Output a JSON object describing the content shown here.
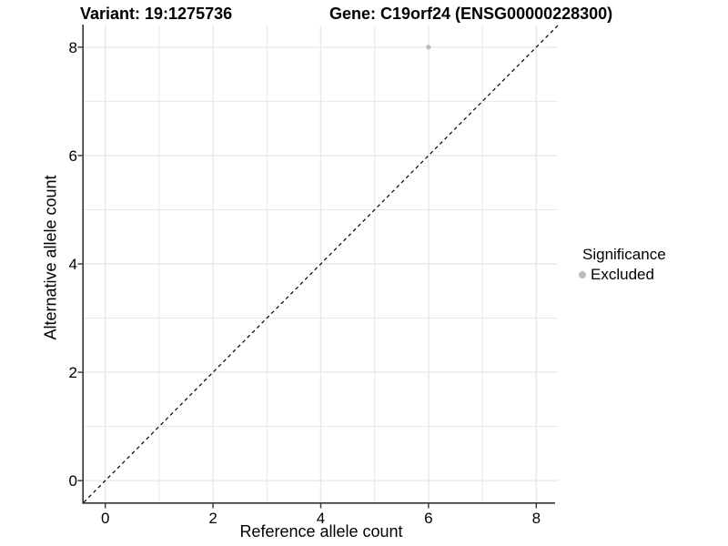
{
  "colors": {
    "background": "#FFFFFF",
    "grid": "#E8E8E8",
    "axis": "#333333",
    "text": "#000000",
    "point": "#BDBDBD"
  },
  "chart_data": {
    "type": "scatter",
    "titles": [
      "Variant: 19:1275736",
      "Gene: C19orf24 (ENSG00000228300)"
    ],
    "xlabel": "Reference allele count",
    "ylabel": "Alternative allele count",
    "xlim": [
      -0.4,
      8.4
    ],
    "ylim": [
      -0.4,
      8.4
    ],
    "xticks": [
      0,
      2,
      4,
      6,
      8
    ],
    "yticks": [
      0,
      2,
      4,
      6,
      8
    ],
    "grid": true,
    "grid_values": [
      0,
      1,
      2,
      3,
      4,
      5,
      6,
      7,
      8
    ],
    "series": [
      {
        "name": "Excluded",
        "color": "#BDBDBD",
        "points": [
          [
            6,
            8
          ]
        ]
      }
    ],
    "identity_line": {
      "equation": "y = x",
      "style": "dashed",
      "color": "#000000"
    },
    "legend": {
      "title": "Significance",
      "position": "right",
      "entries": [
        {
          "label": "Excluded",
          "color": "#BDBDBD",
          "marker": "circle"
        }
      ]
    }
  }
}
